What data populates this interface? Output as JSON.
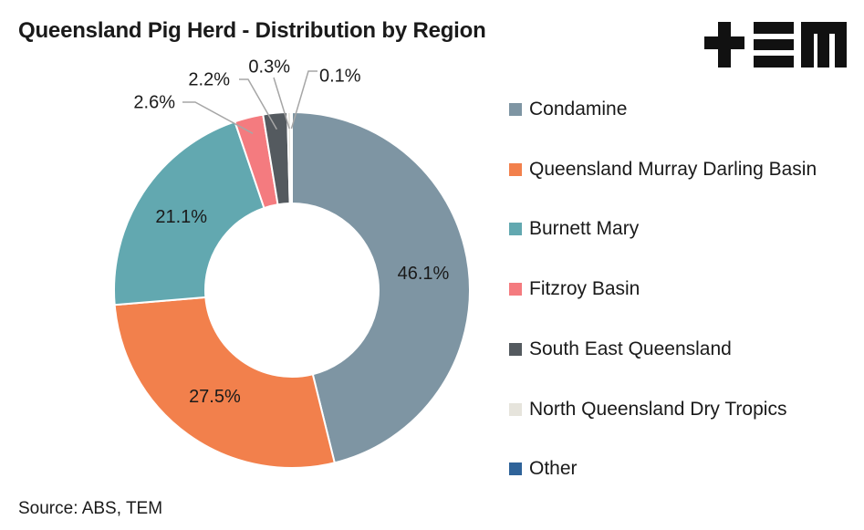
{
  "title": "Queensland Pig Herd - Distribution by Region",
  "source": "Source: ABS, TEM",
  "logo": {
    "text": "+EM",
    "color": "#111111"
  },
  "chart_data": {
    "type": "pie",
    "style": "donut",
    "title": "Queensland Pig Herd - Distribution by Region",
    "legend_position": "right",
    "slices": [
      {
        "name": "Condamine",
        "value": 46.1,
        "label": "46.1%",
        "color": "#7e95a3"
      },
      {
        "name": "Queensland Murray Darling Basin",
        "value": 27.5,
        "label": "27.5%",
        "color": "#f2804c"
      },
      {
        "name": "Burnett Mary",
        "value": 21.1,
        "label": "21.1%",
        "color": "#62a8b0"
      },
      {
        "name": "Fitzroy Basin",
        "value": 2.6,
        "label": "2.6%",
        "color": "#f47b7f"
      },
      {
        "name": "South East Queensland",
        "value": 2.2,
        "label": "2.2%",
        "color": "#545a5f"
      },
      {
        "name": "North Queensland Dry Tropics",
        "value": 0.3,
        "label": "0.3%",
        "color": "#e6e4dc"
      },
      {
        "name": "Other",
        "value": 0.1,
        "label": "0.1%",
        "color": "#2f6399"
      }
    ]
  }
}
